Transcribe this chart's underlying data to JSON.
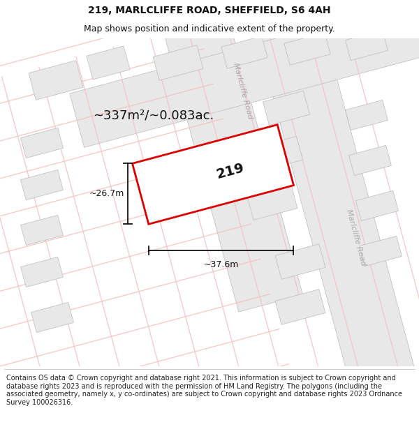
{
  "title": "219, MARLCLIFFE ROAD, SHEFFIELD, S6 4AH",
  "subtitle": "Map shows position and indicative extent of the property.",
  "footer": "Contains OS data © Crown copyright and database right 2021. This information is subject to Crown copyright and database rights 2023 and is reproduced with the permission of HM Land Registry. The polygons (including the associated geometry, namely x, y co-ordinates) are subject to Crown copyright and database rights 2023 Ordnance Survey 100026316.",
  "area_text": "~337m²/~0.083ac.",
  "property_number": "219",
  "dim_width": "~37.6m",
  "dim_height": "~26.7m",
  "road_label_1": "Marlcliffe Road",
  "road_label_2": "Marlcliffe Road",
  "map_bg": "#ffffff",
  "building_color": "#e8e8e8",
  "building_edge": "#bbbbbb",
  "road_fill_color": "#e8e8e8",
  "road_edge_color": "#bbbbbb",
  "road_line_color": "#f5c0c0",
  "highlight_color": "#dd0000",
  "dim_color": "#111111",
  "title_fontsize": 10,
  "subtitle_fontsize": 9,
  "footer_fontsize": 7,
  "area_fontsize": 13,
  "prop_num_fontsize": 14
}
